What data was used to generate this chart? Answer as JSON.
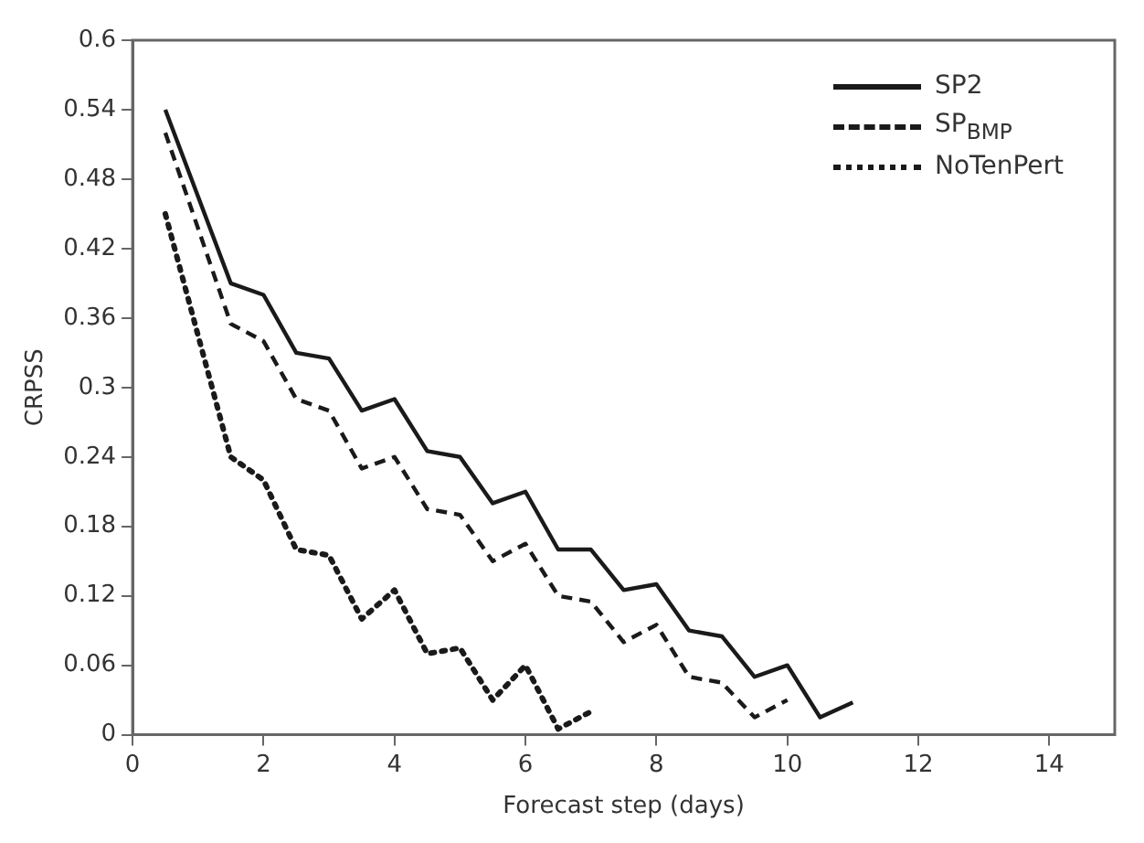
{
  "chart_data": {
    "type": "line",
    "xlabel": "Forecast step (days)",
    "ylabel": "CRPSS",
    "xlim": [
      0,
      15
    ],
    "xticks": [
      0,
      2,
      4,
      6,
      8,
      10,
      12,
      14
    ],
    "ylim": [
      0,
      0.6
    ],
    "yticks": [
      0,
      0.06,
      0.12,
      0.18,
      0.24,
      0.3,
      0.36,
      0.42,
      0.48,
      0.54,
      0.6
    ],
    "grid": false,
    "legend": "top right",
    "marker": "none",
    "series": [
      {
        "name": "SP2",
        "color": "#1a1a1a",
        "line_style": "solid",
        "x": [
          0.5,
          1.5,
          2,
          2.5,
          3,
          3.5,
          4,
          4.5,
          5,
          5.5,
          6,
          6.5,
          7,
          7.5,
          8,
          8.5,
          9,
          9.5,
          10,
          10.5,
          11
        ],
        "values": [
          0.54,
          0.39,
          0.38,
          0.33,
          0.325,
          0.28,
          0.29,
          0.245,
          0.24,
          0.2,
          0.21,
          0.16,
          0.16,
          0.125,
          0.13,
          0.09,
          0.085,
          0.05,
          0.06,
          0.015,
          0.028
        ]
      },
      {
        "name": "SP$_{BMP}$",
        "color": "#1a1a1a",
        "line_style": "dashed",
        "x": [
          0.5,
          1.5,
          2,
          2.5,
          3,
          3.5,
          4,
          4.5,
          5,
          5.5,
          6,
          6.5,
          7,
          7.5,
          8,
          8.5,
          9,
          9.5,
          10
        ],
        "values": [
          0.52,
          0.355,
          0.34,
          0.29,
          0.28,
          0.23,
          0.24,
          0.195,
          0.19,
          0.15,
          0.165,
          0.12,
          0.115,
          0.08,
          0.095,
          0.05,
          0.045,
          0.015,
          0.03
        ]
      },
      {
        "name": "NoTenPert",
        "color": "#1a1a1a",
        "line_style": "dotted",
        "x": [
          0.5,
          1.5,
          2,
          2.5,
          3,
          3.5,
          4,
          4.5,
          5,
          5.5,
          6,
          6.5,
          7
        ],
        "values": [
          0.45,
          0.24,
          0.22,
          0.16,
          0.155,
          0.1,
          0.125,
          0.07,
          0.075,
          0.03,
          0.06,
          0.005,
          0.02
        ]
      }
    ]
  }
}
